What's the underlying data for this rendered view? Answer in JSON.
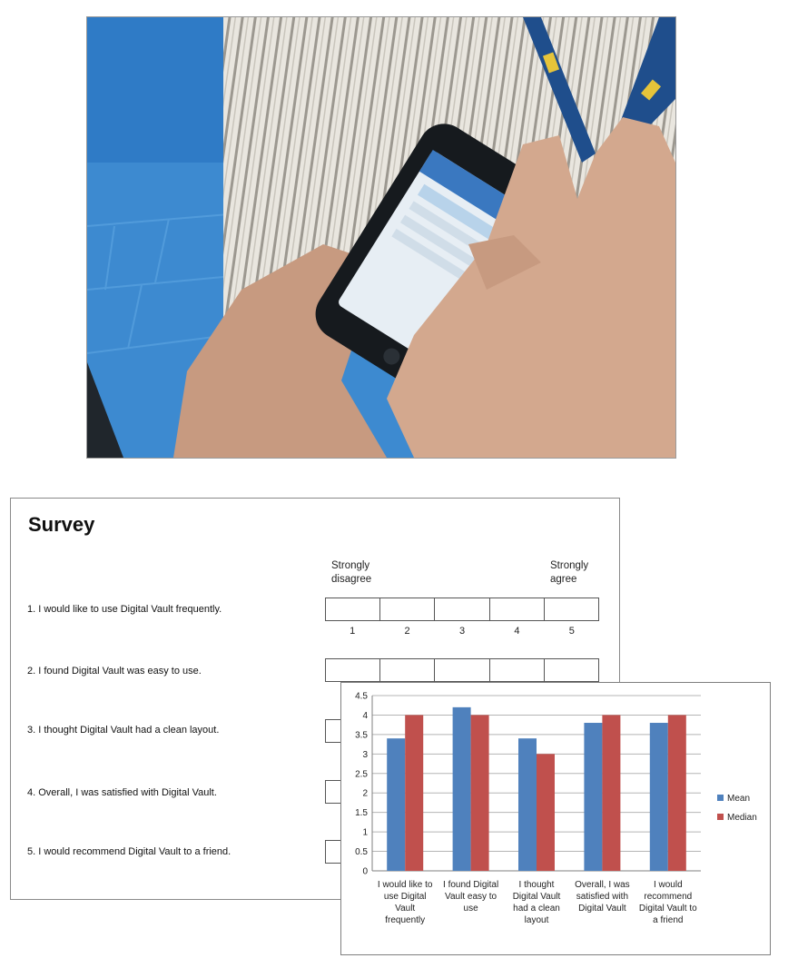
{
  "survey": {
    "title": "Survey",
    "scale_low": "Strongly disagree",
    "scale_high": "Strongly agree",
    "scale_numbers": [
      "1",
      "2",
      "3",
      "4",
      "5"
    ],
    "questions": [
      {
        "num": "1.",
        "text": "I would like to use Digital Vault frequently."
      },
      {
        "num": "2.",
        "text": "I found Digital Vault was easy to use."
      },
      {
        "num": "3.",
        "text": "I thought Digital Vault had a clean layout."
      },
      {
        "num": "4.",
        "text": "Overall, I was satisfied with Digital Vault."
      },
      {
        "num": "5.",
        "text": "I would recommend Digital Vault to a friend."
      }
    ]
  },
  "chart_data": {
    "type": "bar",
    "categories": [
      "I would like to use Digital Vault frequently",
      "I found Digital Vault easy to use",
      "I thought Digital Vault had a clean layout",
      "Overall, I was satisfied with Digital Vault",
      "I would recommend Digital Vault to a friend"
    ],
    "category_lines": [
      [
        "I would like to",
        "use Digital",
        "Vault",
        "frequently"
      ],
      [
        "I found Digital",
        "Vault easy to",
        "use"
      ],
      [
        "I thought",
        "Digital Vault",
        "had a clean",
        "layout"
      ],
      [
        "Overall, I was",
        "satisfied with",
        "Digital Vault"
      ],
      [
        "I would",
        "recommend",
        "Digital Vault to",
        "a friend"
      ]
    ],
    "series": [
      {
        "name": "Mean",
        "color": "#4f81bd",
        "values": [
          3.4,
          4.2,
          3.4,
          3.8,
          3.8
        ]
      },
      {
        "name": "Median",
        "color": "#c0504d",
        "values": [
          4,
          4,
          3,
          4,
          4
        ]
      }
    ],
    "ylim": [
      0,
      4.5
    ],
    "yticks": [
      "0",
      "0.5",
      "1",
      "1.5",
      "2",
      "2.5",
      "3",
      "3.5",
      "4",
      "4.5"
    ],
    "grid": true,
    "legend": "right"
  }
}
